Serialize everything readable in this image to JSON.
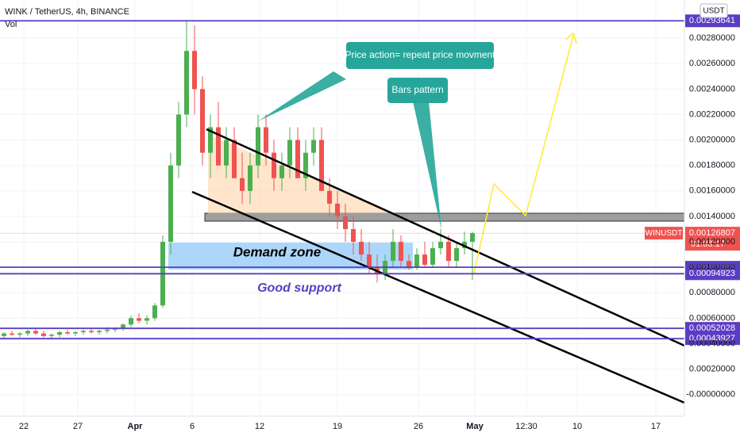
{
  "chart_data": {
    "type": "candlestick",
    "title": "WINK / TetherUS, 4h, BINANCE",
    "volume_label": "Vol",
    "currency": "USDT",
    "symbol": "WINUSDT",
    "countdown": "01:08:17",
    "up_color": "#4caf50",
    "down_color": "#ef5350",
    "ylim": [
      -0.00017,
      0.0031
    ],
    "yticks": [
      {
        "value": 0,
        "label": "-0.00000000"
      },
      {
        "value": 0.0002,
        "label": "0.00020000"
      },
      {
        "value": 0.0004,
        "label": "0.00040000"
      },
      {
        "value": 0.0006,
        "label": "0.00060000"
      },
      {
        "value": 0.0008,
        "label": "0.00080000"
      },
      {
        "value": 0.001,
        "label": "0.00100000"
      },
      {
        "value": 0.0012,
        "label": "0.00120000"
      },
      {
        "value": 0.0014,
        "label": "0.00140000"
      },
      {
        "value": 0.0016,
        "label": "0.00160000"
      },
      {
        "value": 0.0018,
        "label": "0.00180000"
      },
      {
        "value": 0.002,
        "label": "0.00200000"
      },
      {
        "value": 0.0022,
        "label": "0.00220000"
      },
      {
        "value": 0.0024,
        "label": "0.00240000"
      },
      {
        "value": 0.0026,
        "label": "0.00260000"
      },
      {
        "value": 0.0028,
        "label": "0.00280000"
      }
    ],
    "xticks": [
      "22",
      "27",
      "Apr",
      "6",
      "12",
      "19",
      "26",
      "May",
      "12:30",
      "10",
      "17"
    ],
    "levels": [
      {
        "value": 0.00293641,
        "label": "0.00293641",
        "color": "#5b3cc4"
      },
      {
        "value": 0.00126807,
        "label": "0.00126807",
        "color": "#ef5350"
      },
      {
        "value": 0.001,
        "label": "0.00100000",
        "color": "#5b3cc4"
      },
      {
        "value": 0.00094923,
        "label": "0.00094923",
        "color": "#5b3cc4"
      },
      {
        "value": 0.00052028,
        "label": "0.00052028",
        "color": "#5b3cc4"
      },
      {
        "value": 0.00043927,
        "label": "0.00043927",
        "color": "#5b3cc4"
      }
    ],
    "annotations": [
      "Price action= repeat price movment",
      "Bars pattern",
      "Demand zone",
      "Good support"
    ],
    "open": [
      0.00046,
      0.00048,
      0.00047,
      0.00048,
      0.0005,
      0.00048,
      0.00046,
      0.00047,
      0.00049,
      0.00048,
      0.00049,
      0.0005,
      0.00049,
      0.0005,
      0.00051,
      0.00052,
      0.00055,
      0.0006,
      0.00058,
      0.0006,
      0.0007,
      0.0012,
      0.0018,
      0.0022,
      0.0027,
      0.0024,
      0.0019,
      0.0021,
      0.0018,
      0.002,
      0.0017,
      0.0016,
      0.0018,
      0.0021,
      0.0019,
      0.0017,
      0.0018,
      0.002,
      0.0017,
      0.0019,
      0.002,
      0.0016,
      0.0015,
      0.0014,
      0.0013,
      0.0012,
      0.0011,
      0.001,
      0.00095,
      0.00105,
      0.0012,
      0.00105,
      0.001,
      0.0011,
      0.00102,
      0.00115,
      0.0012,
      0.00105,
      0.00115,
      0.0012
    ],
    "high": [
      0.00049,
      0.0005,
      0.00049,
      0.00051,
      0.00052,
      0.0005,
      0.00048,
      0.0005,
      0.00051,
      0.0005,
      0.00051,
      0.00052,
      0.00051,
      0.00053,
      0.00053,
      0.00056,
      0.00062,
      0.00064,
      0.00062,
      0.00072,
      0.00125,
      0.0019,
      0.0023,
      0.00293,
      0.0029,
      0.0025,
      0.0022,
      0.0023,
      0.0021,
      0.0021,
      0.0019,
      0.0019,
      0.0022,
      0.0022,
      0.002,
      0.0019,
      0.0021,
      0.0021,
      0.002,
      0.0021,
      0.0021,
      0.0017,
      0.0016,
      0.0015,
      0.0014,
      0.0013,
      0.0012,
      0.0011,
      0.0011,
      0.0013,
      0.00125,
      0.0011,
      0.00115,
      0.0012,
      0.0012,
      0.0013,
      0.00125,
      0.0012,
      0.00128,
      0.00128
    ],
    "low": [
      0.00044,
      0.00046,
      0.00045,
      0.00046,
      0.00047,
      0.00045,
      0.00044,
      0.00045,
      0.00047,
      0.00046,
      0.00047,
      0.00048,
      0.00047,
      0.00048,
      0.00049,
      0.0005,
      0.00053,
      0.00056,
      0.00055,
      0.00058,
      0.00068,
      0.0011,
      0.0017,
      0.0021,
      0.0022,
      0.0018,
      0.0017,
      0.0018,
      0.0017,
      0.0017,
      0.0015,
      0.0015,
      0.0017,
      0.0018,
      0.0016,
      0.0016,
      0.0017,
      0.0017,
      0.0016,
      0.0018,
      0.0016,
      0.0014,
      0.0013,
      0.0012,
      0.0011,
      0.00105,
      0.00095,
      0.00088,
      0.0009,
      0.001,
      0.001,
      0.00098,
      0.00098,
      0.001,
      0.001,
      0.0011,
      0.001,
      0.001,
      0.0011,
      0.0009
    ],
    "close": [
      0.00048,
      0.00047,
      0.00048,
      0.0005,
      0.00048,
      0.00046,
      0.00047,
      0.00049,
      0.00048,
      0.00049,
      0.0005,
      0.00049,
      0.0005,
      0.00051,
      0.00052,
      0.00055,
      0.0006,
      0.00058,
      0.0006,
      0.0007,
      0.0012,
      0.0018,
      0.0022,
      0.0027,
      0.0024,
      0.0019,
      0.0021,
      0.0018,
      0.002,
      0.0017,
      0.0016,
      0.0018,
      0.0021,
      0.0019,
      0.0017,
      0.0018,
      0.002,
      0.0017,
      0.0019,
      0.002,
      0.0016,
      0.0015,
      0.0014,
      0.0013,
      0.0012,
      0.0011,
      0.001,
      0.00095,
      0.00105,
      0.0012,
      0.00105,
      0.001,
      0.0011,
      0.00102,
      0.00115,
      0.0012,
      0.00105,
      0.00115,
      0.0012,
      0.00126807
    ]
  }
}
